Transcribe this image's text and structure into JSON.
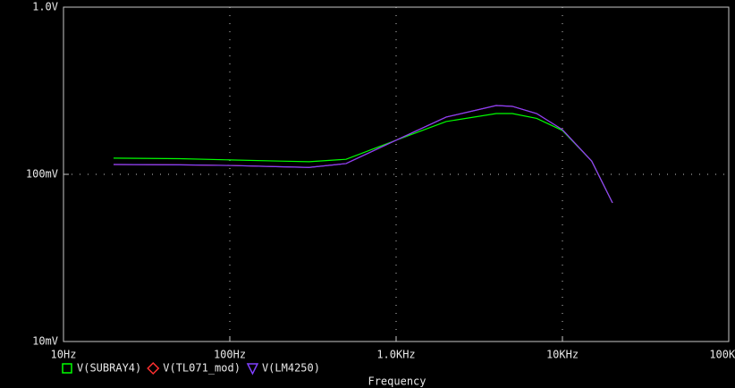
{
  "chart_data": {
    "type": "line",
    "x_label": "Frequency",
    "x": [
      20,
      50,
      100,
      200,
      300,
      500,
      1000,
      2000,
      4000,
      5000,
      7000,
      10000,
      15000,
      20000
    ],
    "series": [
      {
        "name": "V(SUBRAY4)",
        "color": "#00ff00",
        "marker": "square",
        "values": [
          0.125,
          0.124,
          0.122,
          0.12,
          0.119,
          0.123,
          0.16,
          0.207,
          0.231,
          0.231,
          0.216,
          0.183,
          0.12,
          0.0675
        ]
      },
      {
        "name": "V(TL071_mod)",
        "color": "#ff3030",
        "marker": "diamond",
        "values": [
          0.1145,
          0.114,
          0.113,
          0.111,
          0.11,
          0.116,
          0.16,
          0.22,
          0.258,
          0.255,
          0.231,
          0.185,
          0.12,
          0.0675
        ]
      },
      {
        "name": "V(LM4250)",
        "color": "#8040ff",
        "marker": "triangle",
        "values": [
          0.1145,
          0.114,
          0.113,
          0.111,
          0.11,
          0.116,
          0.16,
          0.22,
          0.258,
          0.255,
          0.231,
          0.185,
          0.12,
          0.0675
        ]
      }
    ],
    "xlim": [
      10,
      100000
    ],
    "ylim": [
      0.01,
      1
    ],
    "xticks": [
      {
        "value": 10,
        "label": "10Hz"
      },
      {
        "value": 100,
        "label": "100Hz"
      },
      {
        "value": 1000,
        "label": "1.0KHz"
      },
      {
        "value": 10000,
        "label": "10KHz"
      },
      {
        "value": 100000,
        "label": "100KHz"
      }
    ],
    "yticks": [
      {
        "value": 0.01,
        "label": "10mV"
      },
      {
        "value": 0.1,
        "label": "100mV"
      },
      {
        "value": 1,
        "label": "1.0V"
      }
    ],
    "xscale": "log",
    "yscale": "log",
    "grid": true
  }
}
